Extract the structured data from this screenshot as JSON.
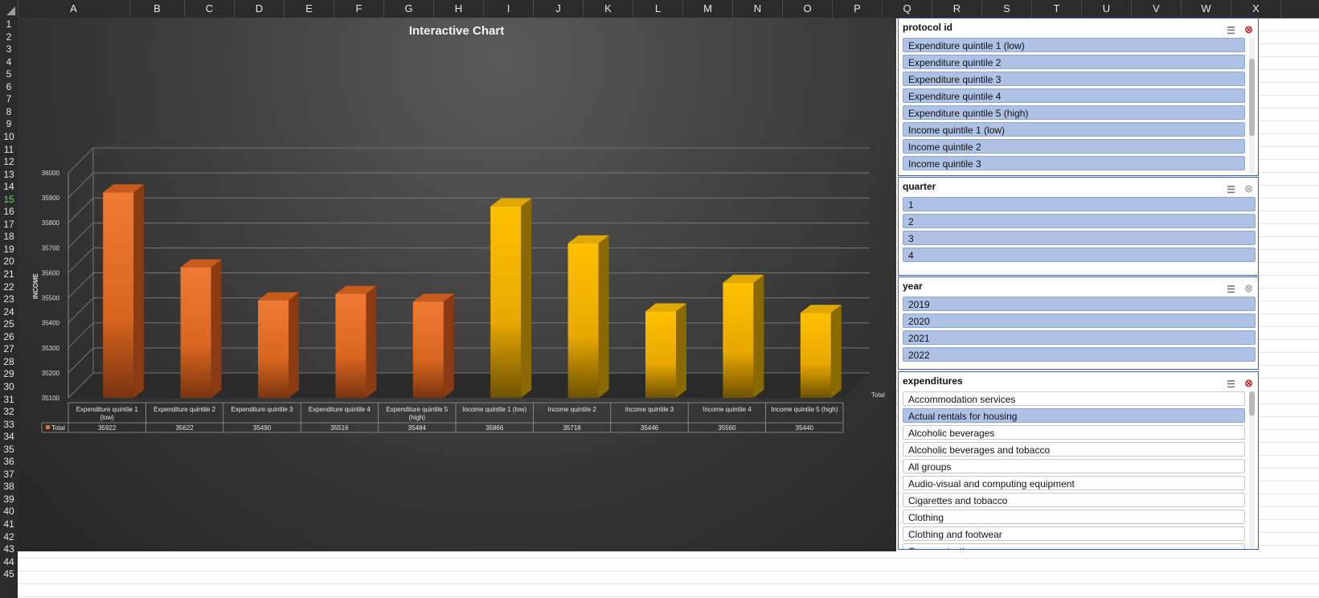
{
  "spreadsheet": {
    "columns": [
      "A",
      "B",
      "C",
      "D",
      "E",
      "F",
      "G",
      "H",
      "I",
      "J",
      "K",
      "L",
      "M",
      "N",
      "O",
      "P",
      "Q",
      "R",
      "S",
      "T",
      "U",
      "V",
      "W",
      "X"
    ],
    "rows": [
      "1",
      "2",
      "3",
      "4",
      "5",
      "6",
      "7",
      "8",
      "9",
      "10",
      "11",
      "12",
      "13",
      "14",
      "15",
      "16",
      "17",
      "18",
      "19",
      "20",
      "21",
      "22",
      "23",
      "24",
      "25",
      "26",
      "27",
      "28",
      "29",
      "30",
      "31",
      "32",
      "33",
      "34",
      "35",
      "36",
      "37",
      "38",
      "39",
      "40",
      "41",
      "42",
      "43",
      "44",
      "45"
    ],
    "selected_row": "15"
  },
  "chart_data": {
    "type": "bar",
    "title": "Interactive Chart",
    "ylabel": "INCOME",
    "xlabel": "Total",
    "ylim": [
      35100,
      36000
    ],
    "yticks": [
      "36000",
      "35900",
      "35800",
      "35700",
      "35600",
      "35500",
      "35400",
      "35300",
      "35200",
      "35100"
    ],
    "categories": [
      "Expenditure quintile 1 (low)",
      "Expenditure quintile 2",
      "Expenditure quintile 3",
      "Expenditure quintile 4",
      "Expenditure quintile 5 (high)",
      "Income quintile 1 (low)",
      "Income quintile 2",
      "Income quintile 3",
      "Income quintile 4",
      "Income quintile 5 (high)"
    ],
    "category_lines": [
      [
        "Expenditure quintile 1",
        "(low)"
      ],
      [
        "Expenditure quintile 2"
      ],
      [
        "Expenditure quintile 3"
      ],
      [
        "Expenditure quintile 4"
      ],
      [
        "Expenditure quintile 5",
        "(high)"
      ],
      [
        "Income quintile 1 (low)"
      ],
      [
        "Income quintile 2"
      ],
      [
        "Income quintile 3"
      ],
      [
        "Income quintile 4"
      ],
      [
        "Income quintile 5 (high)"
      ]
    ],
    "series": [
      {
        "name": "Total",
        "values": [
          35922,
          35622,
          35490,
          35516,
          35484,
          35866,
          35718,
          35446,
          35560,
          35440
        ]
      }
    ],
    "table_values": [
      "35922",
      "35622",
      "35490",
      "35516",
      "35484",
      "35866",
      "35718",
      "35446",
      "35560",
      "35440"
    ],
    "colors": {
      "expenditure": "#e66f2b",
      "income": "#ffc000"
    },
    "grid": true
  },
  "slicers": {
    "protocol": {
      "title": "protocol id",
      "items": [
        "Expenditure quintile 1 (low)",
        "Expenditure quintile 2",
        "Expenditure quintile 3",
        "Expenditure quintile 4",
        "Expenditure quintile 5 (high)",
        "Income quintile 1 (low)",
        "Income quintile 2",
        "Income quintile 3"
      ]
    },
    "quarter": {
      "title": "quarter",
      "items": [
        "1",
        "2",
        "3",
        "4"
      ]
    },
    "year": {
      "title": "year",
      "items": [
        "2019",
        "2020",
        "2021",
        "2022"
      ]
    },
    "expenditures": {
      "title": "expenditures",
      "items": [
        "Accommodation services",
        "Actual rentals for housing",
        "Alcoholic beverages",
        "Alcoholic beverages and tobacco",
        "All groups",
        "Audio-visual and computing equipment",
        "Cigarettes and tobacco",
        "Clothing",
        "Clothing and footwear",
        "Communication"
      ],
      "selected": [
        1
      ]
    }
  },
  "icons": {
    "multiselect": "multi-select-icon",
    "clear_filter": "clear-filter-icon"
  }
}
